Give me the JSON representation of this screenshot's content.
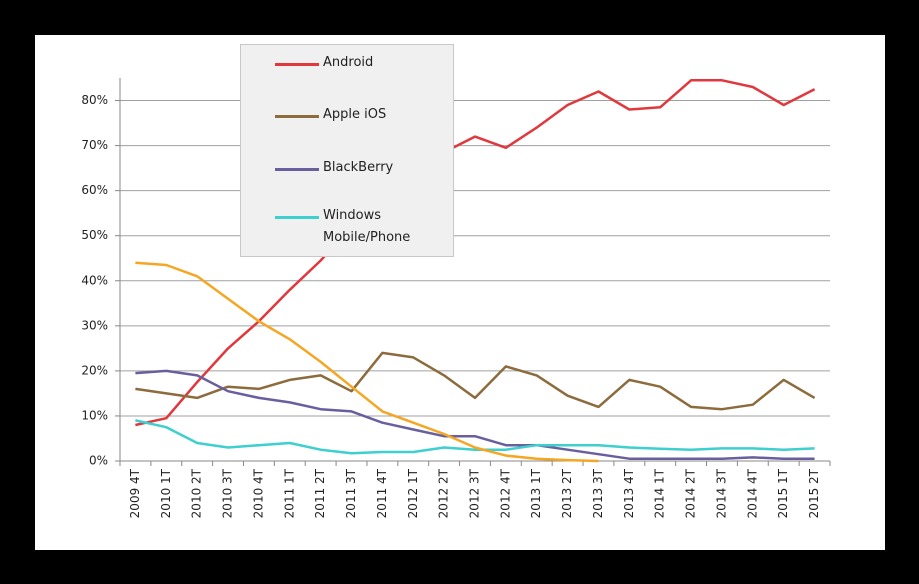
{
  "chart_data": {
    "type": "line",
    "categories": [
      "2009 4T",
      "2010 1T",
      "2010 2T",
      "2010 3T",
      "2010 4T",
      "2011 1T",
      "2011 2T",
      "2011 3T",
      "2011 4T",
      "2012 1T",
      "2012 2T",
      "2012 3T",
      "2012 4T",
      "2013 1T",
      "2013 2T",
      "2013 3T",
      "2013 4T",
      "2014 1T",
      "2014 2T",
      "2014 3T",
      "2014 4T",
      "2015 1T",
      "2015 2T"
    ],
    "series": [
      {
        "name": "Android",
        "color": "#e0383c",
        "values": [
          8,
          9.5,
          17.5,
          25,
          31,
          38,
          44.5,
          52,
          60,
          66,
          68.5,
          72,
          69.5,
          74,
          79,
          82,
          78,
          78.5,
          84.5,
          84.5,
          83,
          79,
          82.5
        ]
      },
      {
        "name": "Apple iOS",
        "color": "#8c6b3c",
        "values": [
          16,
          15,
          14,
          16.5,
          16,
          18,
          19,
          15.5,
          24,
          23,
          19,
          14,
          21,
          19,
          14.5,
          12,
          18,
          16.5,
          12,
          11.5,
          12.5,
          18,
          14
        ]
      },
      {
        "name": "BlackBerry",
        "color": "#6a5f9e",
        "values": [
          19.5,
          20,
          19,
          15.5,
          14,
          13,
          11.5,
          11,
          8.5,
          7,
          5.5,
          5.5,
          3.5,
          3.5,
          2.5,
          1.5,
          0.5,
          0.5,
          0.5,
          0.5,
          0.8,
          0.5,
          0.5
        ]
      },
      {
        "name": "Windows Mobile/Phone",
        "color": "#3ecfcf",
        "values": [
          9,
          7.5,
          4,
          3,
          3.5,
          4,
          2.5,
          1.7,
          2,
          2,
          3,
          2.5,
          2.5,
          3.5,
          3.5,
          3.5,
          3,
          2.7,
          2.5,
          2.8,
          2.8,
          2.5,
          2.8
        ]
      },
      {
        "color": "#f5a623",
        "values": [
          44,
          43.5,
          41,
          36,
          31,
          27,
          22,
          16.5,
          11,
          8.5,
          6,
          3,
          1.2,
          0.5,
          0.2,
          0,
          null,
          null,
          null,
          null,
          null,
          null,
          null
        ]
      }
    ],
    "ylim": [
      0,
      85
    ],
    "yticks": [
      {
        "value": 0,
        "label": "0%"
      },
      {
        "value": 10,
        "label": "10%"
      },
      {
        "value": 20,
        "label": "20%"
      },
      {
        "value": 30,
        "label": "30%"
      },
      {
        "value": 40,
        "label": "40%"
      },
      {
        "value": 50,
        "label": "50%"
      },
      {
        "value": 60,
        "label": "60%"
      },
      {
        "value": 70,
        "label": "70%"
      },
      {
        "value": 80,
        "label": "80%"
      }
    ],
    "grid": true,
    "legend": "upper left"
  }
}
